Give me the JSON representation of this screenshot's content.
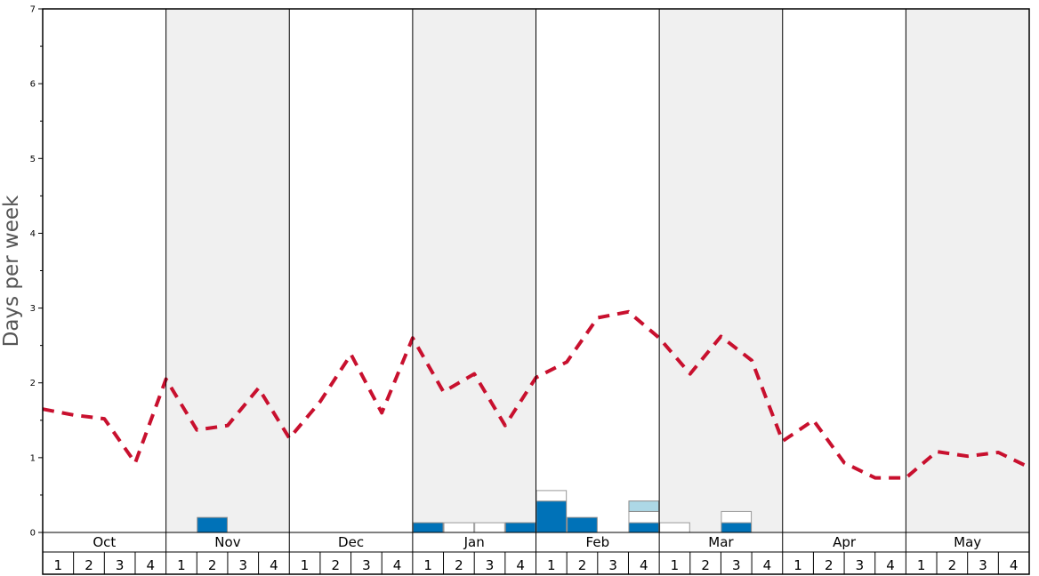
{
  "chart_data": {
    "type": "bar",
    "ylabel": "Days per week",
    "ylim": [
      0,
      7
    ],
    "y_ticks": [
      "0",
      "1",
      "2",
      "3",
      "4",
      "5",
      "6",
      "7"
    ],
    "months": [
      "Oct",
      "Nov",
      "Dec",
      "Jan",
      "Feb",
      "Mar",
      "Apr",
      "May"
    ],
    "week_labels": [
      "1",
      "2",
      "3",
      "4"
    ],
    "shaded_months": [
      "Nov",
      "Jan",
      "Mar",
      "May"
    ],
    "colors": {
      "dark_blue": "#0072b8",
      "light_blue": "#add8e6",
      "open_bar": "#ffffff",
      "average_line": "#c8102e",
      "shade": "#f0f0f0"
    },
    "series": [
      {
        "type": "bar",
        "segments": [
          {
            "week": 5,
            "color": "dark_blue",
            "from": 0,
            "to": 0.2
          },
          {
            "week": 12,
            "color": "dark_blue",
            "from": 0,
            "to": 0.13
          },
          {
            "week": 13,
            "color": "open_bar",
            "from": 0,
            "to": 0.13
          },
          {
            "week": 14,
            "color": "open_bar",
            "from": 0,
            "to": 0.13
          },
          {
            "week": 15,
            "color": "dark_blue",
            "from": 0,
            "to": 0.13
          },
          {
            "week": 16,
            "color": "dark_blue",
            "from": 0,
            "to": 0.42
          },
          {
            "week": 16,
            "color": "open_bar",
            "from": 0.42,
            "to": 0.56
          },
          {
            "week": 17,
            "color": "dark_blue",
            "from": 0,
            "to": 0.2
          },
          {
            "week": 19,
            "color": "dark_blue",
            "from": 0,
            "to": 0.13
          },
          {
            "week": 19,
            "color": "open_bar",
            "from": 0.13,
            "to": 0.28
          },
          {
            "week": 19,
            "color": "light_blue",
            "from": 0.28,
            "to": 0.42
          },
          {
            "week": 20,
            "color": "open_bar",
            "from": 0,
            "to": 0.13
          },
          {
            "week": 22,
            "color": "dark_blue",
            "from": 0,
            "to": 0.13
          },
          {
            "week": 22,
            "color": "open_bar",
            "from": 0.13,
            "to": 0.28
          }
        ]
      },
      {
        "type": "line",
        "style": "dashed",
        "color": "average_line",
        "values": [
          1.65,
          1.57,
          1.52,
          0.93,
          2.05,
          1.37,
          1.43,
          1.93,
          1.26,
          1.75,
          2.38,
          1.6,
          2.6,
          1.88,
          2.12,
          1.43,
          2.07,
          2.28,
          2.87,
          2.95,
          2.6,
          2.12,
          2.62,
          2.3,
          1.22,
          1.5,
          0.93,
          0.73,
          0.73,
          1.08,
          1.02,
          1.07,
          0.87
        ]
      }
    ]
  }
}
